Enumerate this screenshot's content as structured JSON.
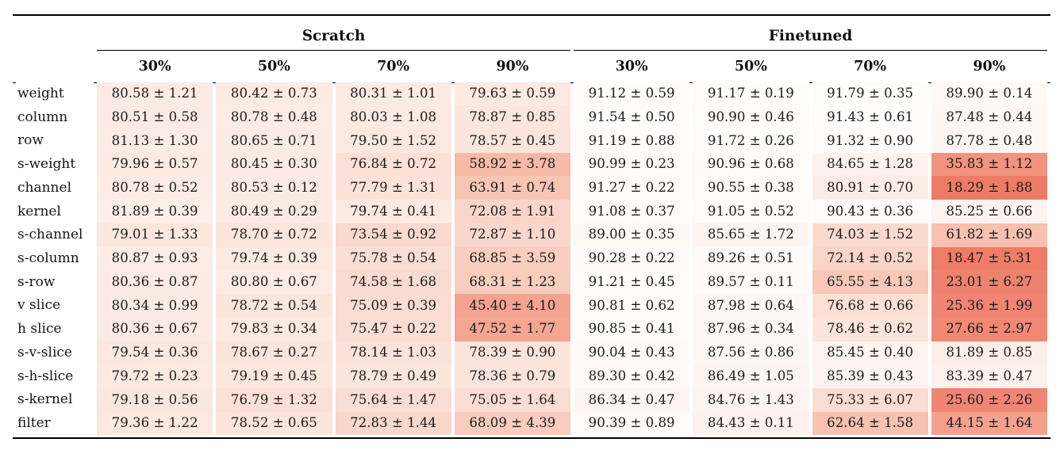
{
  "table": {
    "pm": "±",
    "group_headers": [
      {
        "label": "Scratch"
      },
      {
        "label": "Finetuned"
      }
    ],
    "col_headers": [
      "30%",
      "50%",
      "70%",
      "90%",
      "30%",
      "50%",
      "70%",
      "90%"
    ],
    "rows": [
      {
        "label": "weight",
        "cells": [
          [
            80.58,
            1.21
          ],
          [
            80.42,
            0.73
          ],
          [
            80.31,
            1.01
          ],
          [
            79.63,
            0.59
          ],
          [
            91.12,
            0.59
          ],
          [
            91.17,
            0.19
          ],
          [
            91.79,
            0.35
          ],
          [
            89.9,
            0.14
          ]
        ]
      },
      {
        "label": "column",
        "cells": [
          [
            80.51,
            0.58
          ],
          [
            80.78,
            0.48
          ],
          [
            80.03,
            1.08
          ],
          [
            78.87,
            0.85
          ],
          [
            91.54,
            0.5
          ],
          [
            90.9,
            0.46
          ],
          [
            91.43,
            0.61
          ],
          [
            87.48,
            0.44
          ]
        ]
      },
      {
        "label": "row",
        "cells": [
          [
            81.13,
            1.3
          ],
          [
            80.65,
            0.71
          ],
          [
            79.5,
            1.52
          ],
          [
            78.57,
            0.45
          ],
          [
            91.19,
            0.88
          ],
          [
            91.72,
            0.26
          ],
          [
            91.32,
            0.9
          ],
          [
            87.78,
            0.48
          ]
        ]
      },
      {
        "label": "s-weight",
        "cells": [
          [
            79.96,
            0.57
          ],
          [
            80.45,
            0.3
          ],
          [
            76.84,
            0.72
          ],
          [
            58.92,
            3.78
          ],
          [
            90.99,
            0.23
          ],
          [
            90.96,
            0.68
          ],
          [
            84.65,
            1.28
          ],
          [
            35.83,
            1.12
          ]
        ]
      },
      {
        "label": "channel",
        "cells": [
          [
            80.78,
            0.52
          ],
          [
            80.53,
            0.12
          ],
          [
            77.79,
            1.31
          ],
          [
            63.91,
            0.74
          ],
          [
            91.27,
            0.22
          ],
          [
            90.55,
            0.38
          ],
          [
            80.91,
            0.7
          ],
          [
            18.29,
            1.88
          ]
        ]
      },
      {
        "label": "kernel",
        "cells": [
          [
            81.89,
            0.39
          ],
          [
            80.49,
            0.29
          ],
          [
            79.74,
            0.41
          ],
          [
            72.08,
            1.91
          ],
          [
            91.08,
            0.37
          ],
          [
            91.05,
            0.52
          ],
          [
            90.43,
            0.36
          ],
          [
            85.25,
            0.66
          ]
        ]
      },
      {
        "label": "s-channel",
        "cells": [
          [
            79.01,
            1.33
          ],
          [
            78.7,
            0.72
          ],
          [
            73.54,
            0.92
          ],
          [
            72.87,
            1.1
          ],
          [
            89.0,
            0.35
          ],
          [
            85.65,
            1.72
          ],
          [
            74.03,
            1.52
          ],
          [
            61.82,
            1.69
          ]
        ]
      },
      {
        "label": "s-column",
        "cells": [
          [
            80.87,
            0.93
          ],
          [
            79.74,
            0.39
          ],
          [
            75.78,
            0.54
          ],
          [
            68.85,
            3.59
          ],
          [
            90.28,
            0.22
          ],
          [
            89.26,
            0.51
          ],
          [
            72.14,
            0.52
          ],
          [
            18.47,
            5.31
          ]
        ]
      },
      {
        "label": "s-row",
        "cells": [
          [
            80.36,
            0.87
          ],
          [
            80.8,
            0.67
          ],
          [
            74.58,
            1.68
          ],
          [
            68.31,
            1.23
          ],
          [
            91.21,
            0.45
          ],
          [
            89.57,
            0.11
          ],
          [
            65.55,
            4.13
          ],
          [
            23.01,
            6.27
          ]
        ]
      },
      {
        "label": "v slice",
        "cells": [
          [
            80.34,
            0.99
          ],
          [
            78.72,
            0.54
          ],
          [
            75.09,
            0.39
          ],
          [
            45.4,
            4.1
          ],
          [
            90.81,
            0.62
          ],
          [
            87.98,
            0.64
          ],
          [
            76.68,
            0.66
          ],
          [
            25.36,
            1.99
          ]
        ]
      },
      {
        "label": "h slice",
        "cells": [
          [
            80.36,
            0.67
          ],
          [
            79.83,
            0.34
          ],
          [
            75.47,
            0.22
          ],
          [
            47.52,
            1.77
          ],
          [
            90.85,
            0.41
          ],
          [
            87.96,
            0.34
          ],
          [
            78.46,
            0.62
          ],
          [
            27.66,
            2.97
          ]
        ]
      },
      {
        "label": "s-v-slice",
        "cells": [
          [
            79.54,
            0.36
          ],
          [
            78.67,
            0.27
          ],
          [
            78.14,
            1.03
          ],
          [
            78.39,
            0.9
          ],
          [
            90.04,
            0.43
          ],
          [
            87.56,
            0.86
          ],
          [
            85.45,
            0.4
          ],
          [
            81.89,
            0.85
          ]
        ]
      },
      {
        "label": "s-h-slice",
        "cells": [
          [
            79.72,
            0.23
          ],
          [
            79.19,
            0.45
          ],
          [
            78.79,
            0.49
          ],
          [
            78.36,
            0.79
          ],
          [
            89.3,
            0.42
          ],
          [
            86.49,
            1.05
          ],
          [
            85.39,
            0.43
          ],
          [
            83.39,
            0.47
          ]
        ]
      },
      {
        "label": "s-kernel",
        "cells": [
          [
            79.18,
            0.56
          ],
          [
            76.79,
            1.32
          ],
          [
            75.64,
            1.47
          ],
          [
            75.05,
            1.64
          ],
          [
            86.34,
            0.47
          ],
          [
            84.76,
            1.43
          ],
          [
            75.33,
            6.07
          ],
          [
            25.6,
            2.26
          ]
        ]
      },
      {
        "label": "filter",
        "cells": [
          [
            79.36,
            1.22
          ],
          [
            78.52,
            0.65
          ],
          [
            72.83,
            1.44
          ],
          [
            68.09,
            4.39
          ],
          [
            90.39,
            0.89
          ],
          [
            84.43,
            0.11
          ],
          [
            62.64,
            1.58
          ],
          [
            44.15,
            1.64
          ]
        ]
      }
    ]
  },
  "heatmap": {
    "description": "cell background tint by mean value, lower = redder",
    "anchors": [
      {
        "v": 18,
        "c": "#EE7B66"
      },
      {
        "v": 24,
        "c": "#EF8370"
      },
      {
        "v": 33,
        "c": "#F18F7B"
      },
      {
        "v": 45,
        "c": "#F3A28E"
      },
      {
        "v": 56,
        "c": "#F5B4A1"
      },
      {
        "v": 63,
        "c": "#F7C3B2"
      },
      {
        "v": 69,
        "c": "#F8CEC0"
      },
      {
        "v": 75,
        "c": "#FADCD2"
      },
      {
        "v": 78,
        "c": "#FBE3DA"
      },
      {
        "v": 80,
        "c": "#FCEAE3"
      },
      {
        "v": 83,
        "c": "#FDF0EB"
      },
      {
        "v": 87,
        "c": "#FEF6F3"
      },
      {
        "v": 90,
        "c": "#FFFAF8"
      },
      {
        "v": 92,
        "c": "#FFFDFD"
      }
    ],
    "rule_color": "#000000",
    "text_color": "#1c1c1c"
  }
}
